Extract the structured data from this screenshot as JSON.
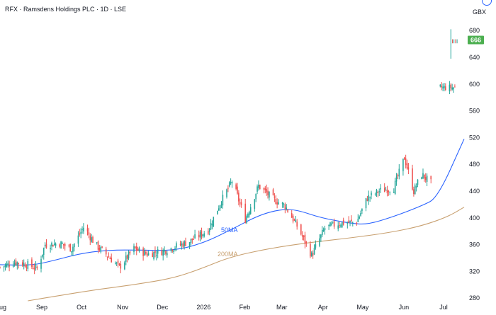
{
  "header": {
    "title": "RFX · Ramsdens Holdings PLC · 1D · LSE",
    "currency": "GBX",
    "last_price_label": "666"
  },
  "colors": {
    "up": "#26a69a",
    "down": "#ef5350",
    "candle": "#4a4a4a",
    "ma50": "#2962ff",
    "ma200": "#c8a070",
    "last_price_badge": "#4caf50"
  },
  "chart_data": {
    "type": "candlestick",
    "title": "RFX · Ramsdens Holdings PLC · 1D · LSE",
    "y_unit": "GBX",
    "ylim": [
      276,
      694
    ],
    "y_ticks": [
      280,
      320,
      360,
      400,
      440,
      480,
      520,
      560,
      600,
      640,
      680
    ],
    "x_range": [
      "2025-08-01",
      "2026-07-17"
    ],
    "x_ticks": [
      {
        "date": "2025-08-01",
        "label": "Aug"
      },
      {
        "date": "2025-09-01",
        "label": "Sep"
      },
      {
        "date": "2025-10-01",
        "label": "Oct"
      },
      {
        "date": "2025-11-01",
        "label": "Nov"
      },
      {
        "date": "2025-12-01",
        "label": "Dec"
      },
      {
        "date": "2026-01-01",
        "label": "2026"
      },
      {
        "date": "2026-02-01",
        "label": "Feb"
      },
      {
        "date": "2026-03-01",
        "label": "Mar"
      },
      {
        "date": "2026-04-01",
        "label": "Apr"
      },
      {
        "date": "2026-05-01",
        "label": "May"
      },
      {
        "date": "2026-06-01",
        "label": "Jun"
      },
      {
        "date": "2026-07-01",
        "label": "Jul"
      }
    ],
    "close_series": [
      {
        "date": "2025-08-01",
        "close": 326
      },
      {
        "date": "2025-08-12",
        "close": 334
      },
      {
        "date": "2025-08-22",
        "close": 330
      },
      {
        "date": "2025-08-29",
        "close": 324
      },
      {
        "date": "2025-09-04",
        "close": 360
      },
      {
        "date": "2025-09-15",
        "close": 362
      },
      {
        "date": "2025-09-24",
        "close": 354
      },
      {
        "date": "2025-10-03",
        "close": 386
      },
      {
        "date": "2025-10-13",
        "close": 358
      },
      {
        "date": "2025-10-22",
        "close": 342
      },
      {
        "date": "2025-10-30",
        "close": 326
      },
      {
        "date": "2025-11-10",
        "close": 354
      },
      {
        "date": "2025-11-20",
        "close": 346
      },
      {
        "date": "2025-12-01",
        "close": 350
      },
      {
        "date": "2025-12-10",
        "close": 356
      },
      {
        "date": "2025-12-22",
        "close": 365
      },
      {
        "date": "2026-01-05",
        "close": 382
      },
      {
        "date": "2026-01-14",
        "close": 422
      },
      {
        "date": "2026-01-23",
        "close": 455
      },
      {
        "date": "2026-02-02",
        "close": 398
      },
      {
        "date": "2026-02-12",
        "close": 448
      },
      {
        "date": "2026-02-23",
        "close": 428
      },
      {
        "date": "2026-03-04",
        "close": 418
      },
      {
        "date": "2026-03-13",
        "close": 388
      },
      {
        "date": "2026-03-24",
        "close": 344
      },
      {
        "date": "2026-04-03",
        "close": 385
      },
      {
        "date": "2026-04-14",
        "close": 392
      },
      {
        "date": "2026-04-27",
        "close": 394
      },
      {
        "date": "2026-05-05",
        "close": 430
      },
      {
        "date": "2026-05-14",
        "close": 440
      },
      {
        "date": "2026-05-25",
        "close": 445
      },
      {
        "date": "2026-06-02",
        "close": 490
      },
      {
        "date": "2026-06-09",
        "close": 440
      },
      {
        "date": "2026-06-15",
        "close": 465
      },
      {
        "date": "2026-06-22",
        "close": 452
      }
    ],
    "post_gap_series": [
      {
        "date": "2026-06-27",
        "close": 595
      },
      {
        "date": "2026-07-07",
        "close": 664
      }
    ],
    "last_price": 666,
    "ma50": {
      "name": "50MA",
      "values": [
        {
          "date": "2025-08-01",
          "value": 330
        },
        {
          "date": "2025-08-25",
          "value": 329
        },
        {
          "date": "2025-09-10",
          "value": 336
        },
        {
          "date": "2025-10-01",
          "value": 347
        },
        {
          "date": "2025-10-22",
          "value": 352
        },
        {
          "date": "2025-11-15",
          "value": 352
        },
        {
          "date": "2025-12-10",
          "value": 351
        },
        {
          "date": "2026-01-01",
          "value": 362
        },
        {
          "date": "2026-01-22",
          "value": 382
        },
        {
          "date": "2026-02-12",
          "value": 404
        },
        {
          "date": "2026-03-01",
          "value": 413
        },
        {
          "date": "2026-03-13",
          "value": 412
        },
        {
          "date": "2026-03-31",
          "value": 400
        },
        {
          "date": "2026-04-22",
          "value": 392
        },
        {
          "date": "2026-05-05",
          "value": 390
        },
        {
          "date": "2026-05-25",
          "value": 402
        },
        {
          "date": "2026-06-15",
          "value": 418
        },
        {
          "date": "2026-06-27",
          "value": 430
        },
        {
          "date": "2026-07-17",
          "value": 518
        }
      ]
    },
    "ma200": {
      "name": "200MA",
      "values": [
        {
          "date": "2025-08-22",
          "value": 276
        },
        {
          "date": "2025-09-15",
          "value": 284
        },
        {
          "date": "2025-10-10",
          "value": 292
        },
        {
          "date": "2025-11-10",
          "value": 300
        },
        {
          "date": "2025-12-10",
          "value": 310
        },
        {
          "date": "2026-01-01",
          "value": 325
        },
        {
          "date": "2026-01-22",
          "value": 342
        },
        {
          "date": "2026-02-22",
          "value": 355
        },
        {
          "date": "2026-03-22",
          "value": 363
        },
        {
          "date": "2026-04-22",
          "value": 370
        },
        {
          "date": "2026-05-22",
          "value": 378
        },
        {
          "date": "2026-06-15",
          "value": 388
        },
        {
          "date": "2026-07-05",
          "value": 402
        },
        {
          "date": "2026-07-17",
          "value": 416
        }
      ]
    }
  }
}
